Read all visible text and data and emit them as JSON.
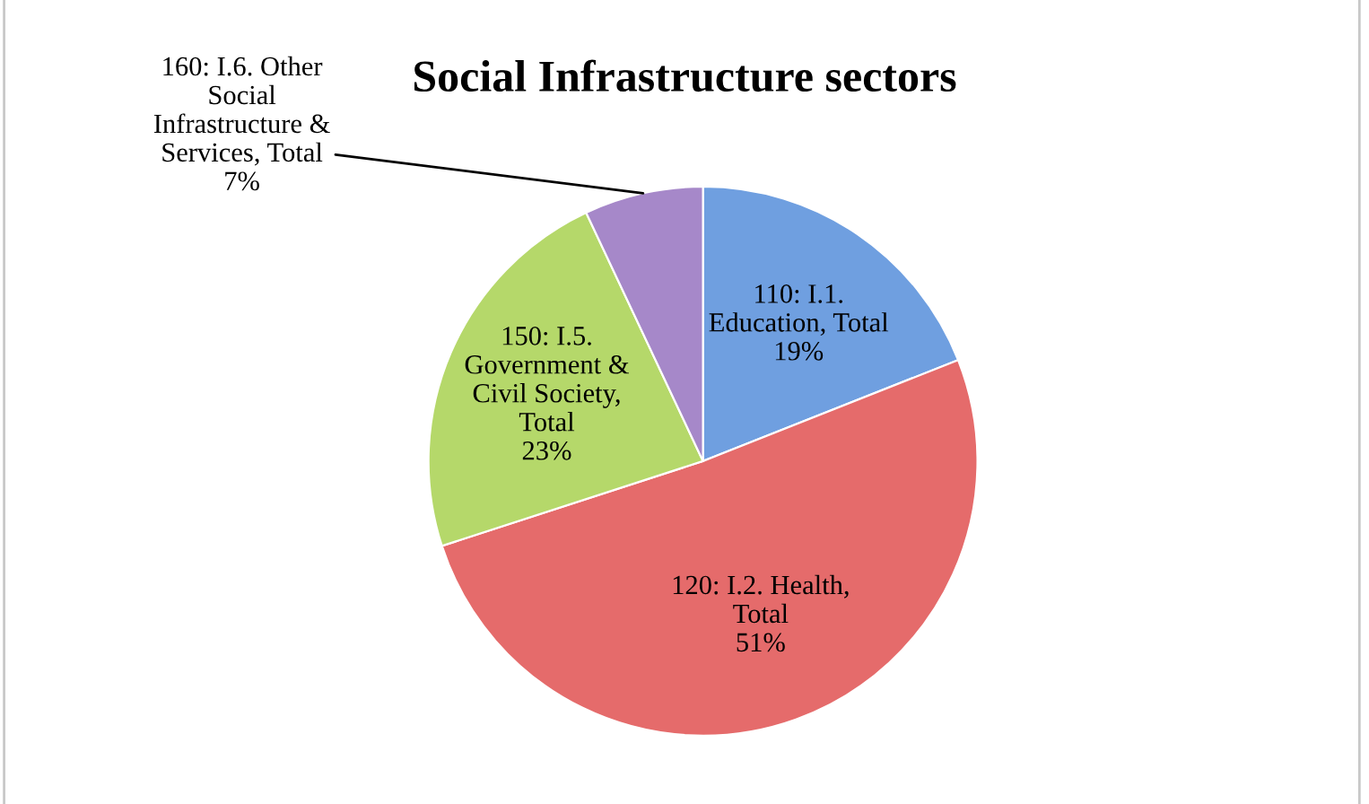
{
  "chart_data": {
    "type": "pie",
    "title": "Social Infrastructure sectors",
    "categories": [
      "110: I.1.\nEducation, Total",
      "120: I.2. Health,\nTotal",
      "150: I.5.\nGovernment &\nCivil Society,\nTotal",
      "160: I.6. Other\nSocial\nInfrastructure &\nServices, Total"
    ],
    "values": [
      19,
      51,
      23,
      7
    ],
    "colors": [
      "#6f9fe0",
      "#e56b6b",
      "#b5d86a",
      "#a688c9"
    ],
    "value_labels": [
      "19%",
      "51%",
      "23%",
      "7%"
    ],
    "legend": false
  }
}
